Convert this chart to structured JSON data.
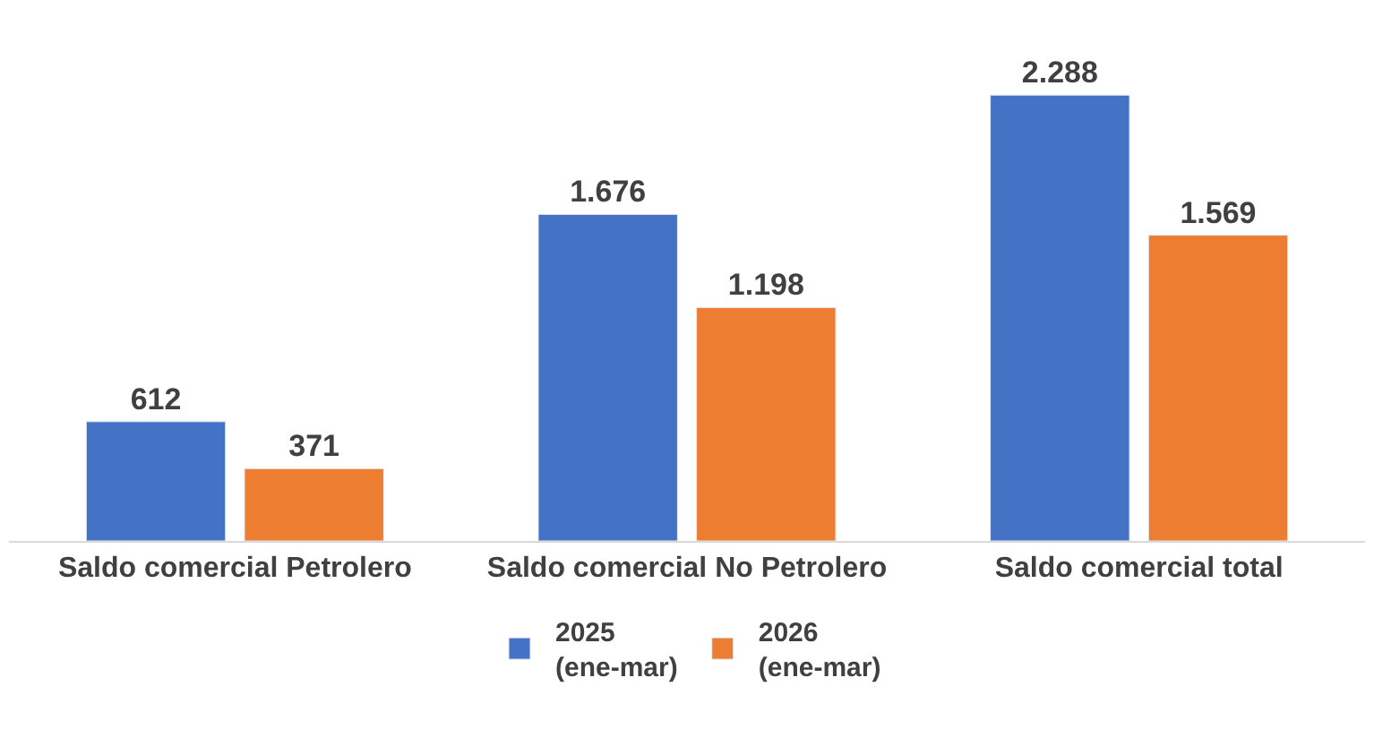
{
  "chart_data": {
    "type": "bar",
    "categories": [
      "Saldo comercial Petrolero",
      "Saldo comercial No Petrolero",
      "Saldo comercial total"
    ],
    "series": [
      {
        "name": "2025\n(ene-mar)",
        "color": "#4472c4",
        "values": [
          612,
          1676,
          2288
        ],
        "value_labels": [
          "612",
          "1.676",
          "2.288"
        ]
      },
      {
        "name": "2026\n(ene-mar)",
        "color": "#ed7d31",
        "values": [
          371,
          1198,
          1569
        ],
        "value_labels": [
          "371",
          "1.198",
          "1.569"
        ]
      }
    ],
    "legend": "bottom",
    "tick_labels": "x"
  }
}
